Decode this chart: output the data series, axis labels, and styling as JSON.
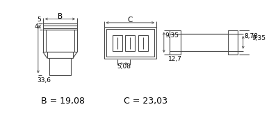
{
  "bg_color": "#ffffff",
  "line_color": "#4a4a4a",
  "text_color": "#000000",
  "label_B": "B",
  "label_C": "C",
  "dim_5": "5",
  "dim_4": "4",
  "dim_33_6": "33,6",
  "dim_5_08": "5,08",
  "dim_9_35a": "9,35",
  "dim_12_7": "12,7",
  "dim_8_78": "8,78",
  "dim_9_35b": "9,35",
  "eq_B": "B = 19,08",
  "eq_C": "C = 23,03",
  "fontsize_small": 6.5,
  "fontsize_eq": 9
}
